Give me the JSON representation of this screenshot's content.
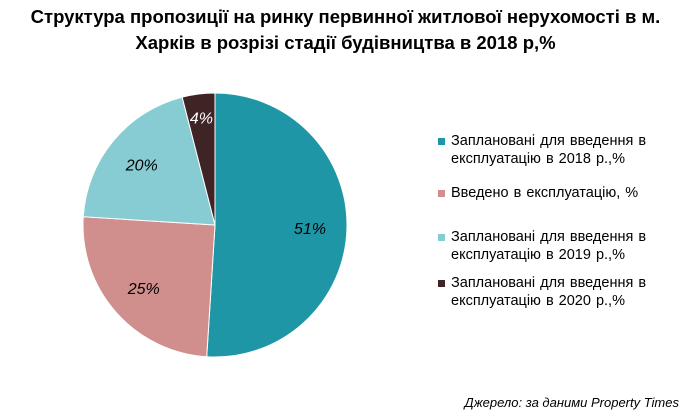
{
  "chart_data": {
    "type": "pie",
    "title_line1": "Структура пропозиції на ринку первинної житлової нерухомості в м.",
    "title_line2": "Харків в розрізі стадії будівництва в 2018 р,%",
    "slices": [
      {
        "label": "Заплановані  для  введення  в експлуатацію  в 2018 р.,%",
        "value": 51,
        "value_label": "51%",
        "color": "#1f96a6"
      },
      {
        "label": "Введено в експлуатацію,  %",
        "value": 25,
        "value_label": "25%",
        "color": "#d08f8c"
      },
      {
        "label": "Заплановані  для  введення  в експлуатацію в 2019 р.,%",
        "value": 20,
        "value_label": "20%",
        "color": "#86ccd2"
      },
      {
        "label": "Заплановані  для  введення  в експлуатацію  в 2020 р.,%",
        "value": 4,
        "value_label": "4%",
        "color": "#3f2426"
      }
    ],
    "legend_position": "right"
  },
  "source": "Джерело: за даними Property Times"
}
